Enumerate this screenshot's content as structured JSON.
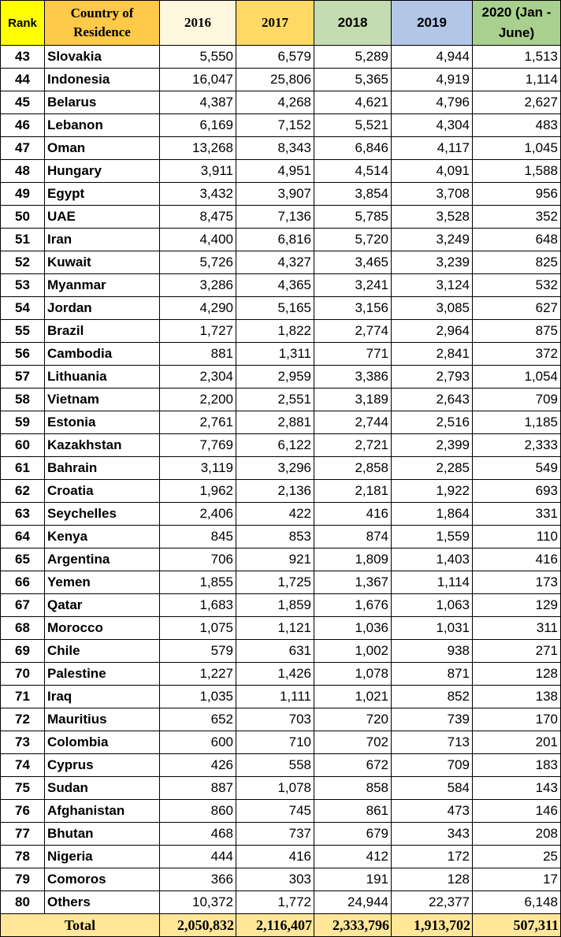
{
  "headers": {
    "rank": "Rank",
    "country": "Country of Residence",
    "y2016": "2016",
    "y2017": "2017",
    "y2018": "2018",
    "y2019": "2019",
    "y2020": "2020 (Jan - June)"
  },
  "rows": [
    {
      "rank": "43",
      "country": "Slovakia",
      "y2016": "5,550",
      "y2017": "6,579",
      "y2018": "5,289",
      "y2019": "4,944",
      "y2020": "1,513"
    },
    {
      "rank": "44",
      "country": "Indonesia",
      "y2016": "16,047",
      "y2017": "25,806",
      "y2018": "5,365",
      "y2019": "4,919",
      "y2020": "1,114"
    },
    {
      "rank": "45",
      "country": "Belarus",
      "y2016": "4,387",
      "y2017": "4,268",
      "y2018": "4,621",
      "y2019": "4,796",
      "y2020": "2,627"
    },
    {
      "rank": "46",
      "country": "Lebanon",
      "y2016": "6,169",
      "y2017": "7,152",
      "y2018": "5,521",
      "y2019": "4,304",
      "y2020": "483"
    },
    {
      "rank": "47",
      "country": "Oman",
      "y2016": "13,268",
      "y2017": "8,343",
      "y2018": "6,846",
      "y2019": "4,117",
      "y2020": "1,045"
    },
    {
      "rank": "48",
      "country": "Hungary",
      "y2016": "3,911",
      "y2017": "4,951",
      "y2018": "4,514",
      "y2019": "4,091",
      "y2020": "1,588"
    },
    {
      "rank": "49",
      "country": "Egypt",
      "y2016": "3,432",
      "y2017": "3,907",
      "y2018": "3,854",
      "y2019": "3,708",
      "y2020": "956"
    },
    {
      "rank": "50",
      "country": "UAE",
      "y2016": "8,475",
      "y2017": "7,136",
      "y2018": "5,785",
      "y2019": "3,528",
      "y2020": "352"
    },
    {
      "rank": "51",
      "country": "Iran",
      "y2016": "4,400",
      "y2017": "6,816",
      "y2018": "5,720",
      "y2019": "3,249",
      "y2020": "648"
    },
    {
      "rank": "52",
      "country": "Kuwait",
      "y2016": "5,726",
      "y2017": "4,327",
      "y2018": "3,465",
      "y2019": "3,239",
      "y2020": "825"
    },
    {
      "rank": "53",
      "country": "Myanmar",
      "y2016": "3,286",
      "y2017": "4,365",
      "y2018": "3,241",
      "y2019": "3,124",
      "y2020": "532"
    },
    {
      "rank": "54",
      "country": "Jordan",
      "y2016": "4,290",
      "y2017": "5,165",
      "y2018": "3,156",
      "y2019": "3,085",
      "y2020": "627"
    },
    {
      "rank": "55",
      "country": "Brazil",
      "y2016": "1,727",
      "y2017": "1,822",
      "y2018": "2,774",
      "y2019": "2,964",
      "y2020": "875"
    },
    {
      "rank": "56",
      "country": "Cambodia",
      "y2016": "881",
      "y2017": "1,311",
      "y2018": "771",
      "y2019": "2,841",
      "y2020": "372"
    },
    {
      "rank": "57",
      "country": "Lithuania",
      "y2016": "2,304",
      "y2017": "2,959",
      "y2018": "3,386",
      "y2019": "2,793",
      "y2020": "1,054"
    },
    {
      "rank": "58",
      "country": "Vietnam",
      "y2016": "2,200",
      "y2017": "2,551",
      "y2018": "3,189",
      "y2019": "2,643",
      "y2020": "709"
    },
    {
      "rank": "59",
      "country": "Estonia",
      "y2016": "2,761",
      "y2017": "2,881",
      "y2018": "2,744",
      "y2019": "2,516",
      "y2020": "1,185"
    },
    {
      "rank": "60",
      "country": "Kazakhstan",
      "y2016": "7,769",
      "y2017": "6,122",
      "y2018": "2,721",
      "y2019": "2,399",
      "y2020": "2,333"
    },
    {
      "rank": "61",
      "country": "Bahrain",
      "y2016": "3,119",
      "y2017": "3,296",
      "y2018": "2,858",
      "y2019": "2,285",
      "y2020": "549"
    },
    {
      "rank": "62",
      "country": "Croatia",
      "y2016": "1,962",
      "y2017": "2,136",
      "y2018": "2,181",
      "y2019": "1,922",
      "y2020": "693"
    },
    {
      "rank": "63",
      "country": "Seychelles",
      "y2016": "2,406",
      "y2017": "422",
      "y2018": "416",
      "y2019": "1,864",
      "y2020": "331"
    },
    {
      "rank": "64",
      "country": "Kenya",
      "y2016": "845",
      "y2017": "853",
      "y2018": "874",
      "y2019": "1,559",
      "y2020": "110"
    },
    {
      "rank": "65",
      "country": "Argentina",
      "y2016": "706",
      "y2017": "921",
      "y2018": "1,809",
      "y2019": "1,403",
      "y2020": "416"
    },
    {
      "rank": "66",
      "country": "Yemen",
      "y2016": "1,855",
      "y2017": "1,725",
      "y2018": "1,367",
      "y2019": "1,114",
      "y2020": "173"
    },
    {
      "rank": "67",
      "country": "Qatar",
      "y2016": "1,683",
      "y2017": "1,859",
      "y2018": "1,676",
      "y2019": "1,063",
      "y2020": "129"
    },
    {
      "rank": "68",
      "country": "Morocco",
      "y2016": "1,075",
      "y2017": "1,121",
      "y2018": "1,036",
      "y2019": "1,031",
      "y2020": "311"
    },
    {
      "rank": "69",
      "country": "Chile",
      "y2016": "579",
      "y2017": "631",
      "y2018": "1,002",
      "y2019": "938",
      "y2020": "271"
    },
    {
      "rank": "70",
      "country": "Palestine",
      "y2016": "1,227",
      "y2017": "1,426",
      "y2018": "1,078",
      "y2019": "871",
      "y2020": "128"
    },
    {
      "rank": "71",
      "country": "Iraq",
      "y2016": "1,035",
      "y2017": "1,111",
      "y2018": "1,021",
      "y2019": "852",
      "y2020": "138"
    },
    {
      "rank": "72",
      "country": "Mauritius",
      "y2016": "652",
      "y2017": "703",
      "y2018": "720",
      "y2019": "739",
      "y2020": "170"
    },
    {
      "rank": "73",
      "country": "Colombia",
      "y2016": "600",
      "y2017": "710",
      "y2018": "702",
      "y2019": "713",
      "y2020": "201"
    },
    {
      "rank": "74",
      "country": "Cyprus",
      "y2016": "426",
      "y2017": "558",
      "y2018": "672",
      "y2019": "709",
      "y2020": "183"
    },
    {
      "rank": "75",
      "country": "Sudan",
      "y2016": "887",
      "y2017": "1,078",
      "y2018": "858",
      "y2019": "584",
      "y2020": "143"
    },
    {
      "rank": "76",
      "country": "Afghanistan",
      "y2016": "860",
      "y2017": "745",
      "y2018": "861",
      "y2019": "473",
      "y2020": "146"
    },
    {
      "rank": "77",
      "country": "Bhutan",
      "y2016": "468",
      "y2017": "737",
      "y2018": "679",
      "y2019": "343",
      "y2020": "208"
    },
    {
      "rank": "78",
      "country": "Nigeria",
      "y2016": "444",
      "y2017": "416",
      "y2018": "412",
      "y2019": "172",
      "y2020": "25"
    },
    {
      "rank": "79",
      "country": "Comoros",
      "y2016": "366",
      "y2017": "303",
      "y2018": "191",
      "y2019": "128",
      "y2020": "17"
    },
    {
      "rank": "80",
      "country": "Others",
      "y2016": "10,372",
      "y2017": "1,772",
      "y2018": "24,944",
      "y2019": "22,377",
      "y2020": "6,148"
    }
  ],
  "total": {
    "label": "Total",
    "y2016": "2,050,832",
    "y2017": "2,116,407",
    "y2018": "2,333,796",
    "y2019": "1,913,702",
    "y2020": "507,311"
  }
}
